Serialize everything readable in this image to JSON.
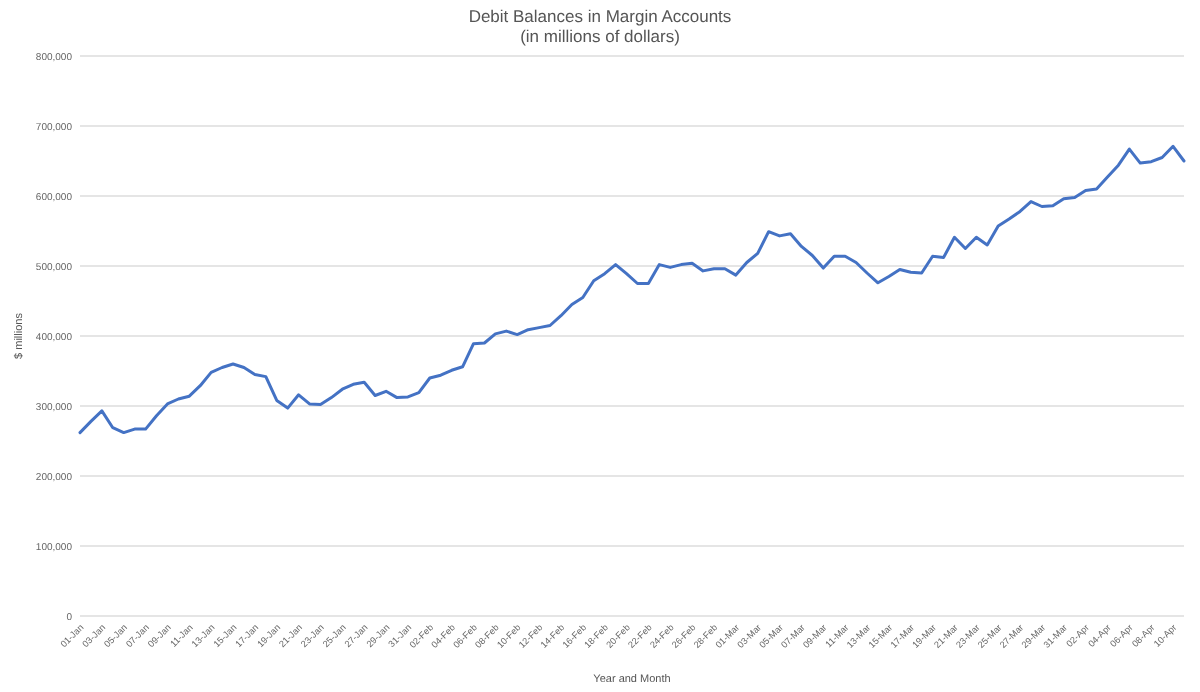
{
  "chart_data": {
    "type": "line",
    "title": "Debit Balances in Margin Accounts",
    "subtitle": "(in millions of dollars)",
    "xlabel": "Year and Month",
    "ylabel": "$ millions",
    "categories": [
      "01-Jan",
      null,
      "03-Jan",
      null,
      "05-Jan",
      null,
      "07-Jan",
      null,
      "09-Jan",
      null,
      "11-Jan",
      null,
      "13-Jan",
      null,
      "15-Jan",
      null,
      "17-Jan",
      null,
      "19-Jan",
      null,
      "21-Jan",
      null,
      "23-Jan",
      null,
      "25-Jan",
      null,
      "27-Jan",
      null,
      "29-Jan",
      null,
      "31-Jan",
      null,
      "02-Feb",
      null,
      "04-Feb",
      null,
      "06-Feb",
      null,
      "08-Feb",
      null,
      "10-Feb",
      null,
      "12-Feb",
      null,
      "14-Feb",
      null,
      "16-Feb",
      null,
      "18-Feb",
      null,
      "20-Feb",
      null,
      "22-Feb",
      null,
      "24-Feb",
      null,
      "26-Feb",
      null,
      "28-Feb",
      null,
      "01-Mar",
      null,
      "03-Mar",
      null,
      "05-Mar",
      null,
      "07-Mar",
      null,
      "09-Mar",
      null,
      "11-Mar",
      null,
      "13-Mar",
      null,
      "15-Mar",
      null,
      "17-Mar",
      null,
      "19-Mar",
      null,
      "21-Mar",
      null,
      "23-Mar",
      null,
      "25-Mar",
      null,
      "27-Mar",
      null,
      "29-Mar",
      null,
      "31-Mar",
      null,
      "02-Apr",
      null,
      "04-Apr",
      null,
      "06-Apr",
      null,
      "08-Apr",
      null,
      "10-Apr",
      null
    ],
    "series": [
      {
        "color": "#4472c4",
        "values": [
          262000,
          278000,
          293000,
          269000,
          262000,
          267000,
          267000,
          286000,
          303000,
          310000,
          314000,
          329000,
          348000,
          355000,
          360000,
          355000,
          345000,
          342000,
          308000,
          297000,
          316000,
          303000,
          302000,
          312000,
          324000,
          331000,
          334000,
          315000,
          321000,
          312000,
          313000,
          319000,
          340000,
          344000,
          351000,
          356000,
          389000,
          390000,
          403000,
          407000,
          402000,
          409000,
          412000,
          415000,
          429000,
          445000,
          455000,
          479000,
          489000,
          502000,
          489000,
          475000,
          475000,
          502000,
          498000,
          502000,
          504000,
          493000,
          496000,
          496000,
          487000,
          505000,
          518000,
          549000,
          543000,
          546000,
          528000,
          515000,
          497000,
          514000,
          514000,
          505000,
          490000,
          476000,
          485000,
          495000,
          491000,
          490000,
          514000,
          512000,
          541000,
          525000,
          541000,
          530000,
          557000,
          567000,
          578000,
          592000,
          585000,
          586000,
          596000,
          598000,
          608000,
          610000,
          627000,
          644000,
          667000,
          647000,
          649000,
          655000,
          671000,
          650000
        ]
      }
    ],
    "ylim": [
      0,
      800000
    ],
    "yticks": [
      {
        "value": 0,
        "label": "0"
      },
      {
        "value": 100000,
        "label": "100,000"
      },
      {
        "value": 200000,
        "label": "200,000"
      },
      {
        "value": 300000,
        "label": "300,000"
      },
      {
        "value": 400000,
        "label": "400,000"
      },
      {
        "value": 500000,
        "label": "500,000"
      },
      {
        "value": 600000,
        "label": "600,000"
      },
      {
        "value": 700000,
        "label": "700,000"
      },
      {
        "value": 800000,
        "label": "800,000"
      }
    ],
    "grid": "y",
    "marker": "none",
    "line_style": "solid"
  }
}
